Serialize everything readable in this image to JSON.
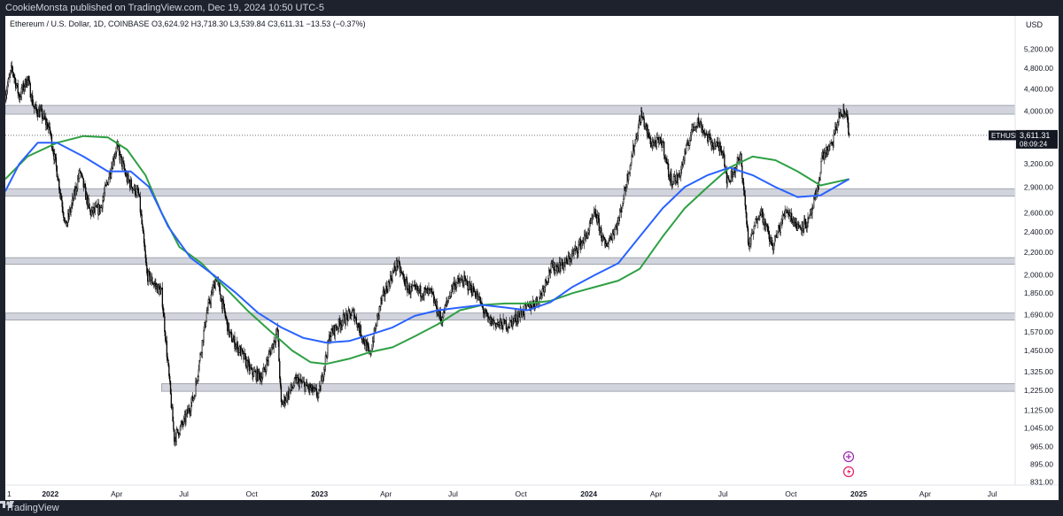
{
  "header": {
    "published_text": "CookieMonsta published on TradingView.com, Dec 19, 2024 10:50 UTC-5"
  },
  "footer": {
    "brand": "TradingView"
  },
  "colors": {
    "ma_blue": "#2962ff",
    "ma_green": "#2ea043",
    "zone": "#d1d4dc"
  },
  "chart_data": {
    "type": "candlestick",
    "symbol_line": "Ethereum / U.S. Dollar, 1D, COINBASE  O3,624.92  H3,718.30  L3,539.84  C3,611.31  −13.53 (−0.37%)",
    "currency": "USD",
    "price_label": {
      "symbol": "ETHUSD",
      "price": "3,611.31",
      "countdown": "08:09:24",
      "value": 3611.31
    },
    "scale": "log",
    "ylim": [
      820,
      5600
    ],
    "y_ticks": [
      {
        "label": "5,200.00",
        "value": 5200
      },
      {
        "label": "4,800.00",
        "value": 4800
      },
      {
        "label": "4,400.00",
        "value": 4400
      },
      {
        "label": "4,000.00",
        "value": 4000
      },
      {
        "label": "3,600.00",
        "value": 3600
      },
      {
        "label": "3,200.00",
        "value": 3200
      },
      {
        "label": "2,900.00",
        "value": 2900
      },
      {
        "label": "2,600.00",
        "value": 2600
      },
      {
        "label": "2,400.00",
        "value": 2400
      },
      {
        "label": "2,200.00",
        "value": 2200
      },
      {
        "label": "2,000.00",
        "value": 2000
      },
      {
        "label": "1,850.00",
        "value": 1850
      },
      {
        "label": "1,690.00",
        "value": 1690
      },
      {
        "label": "1,570.00",
        "value": 1570
      },
      {
        "label": "1,450.00",
        "value": 1450
      },
      {
        "label": "1,325.00",
        "value": 1325
      },
      {
        "label": "1,225.00",
        "value": 1225
      },
      {
        "label": "1,125.00",
        "value": 1125
      },
      {
        "label": "1,045.00",
        "value": 1045
      },
      {
        "label": "965.00",
        "value": 965
      },
      {
        "label": "895.00",
        "value": 895
      },
      {
        "label": "831.00",
        "value": 831
      }
    ],
    "x_ticks": [
      {
        "label": "1",
        "date": "2021-11-01"
      },
      {
        "label": "2022",
        "date": "2022-01-01"
      },
      {
        "label": "Apr",
        "date": "2022-04-01"
      },
      {
        "label": "Jul",
        "date": "2022-07-01"
      },
      {
        "label": "Oct",
        "date": "2022-10-01"
      },
      {
        "label": "2023",
        "date": "2023-01-01"
      },
      {
        "label": "Apr",
        "date": "2023-04-01"
      },
      {
        "label": "Jul",
        "date": "2023-07-01"
      },
      {
        "label": "Oct",
        "date": "2023-10-01"
      },
      {
        "label": "2024",
        "date": "2024-01-01"
      },
      {
        "label": "Apr",
        "date": "2024-04-01"
      },
      {
        "label": "Jul",
        "date": "2024-07-01"
      },
      {
        "label": "Oct",
        "date": "2024-10-01"
      },
      {
        "label": "2025",
        "date": "2025-01-01"
      },
      {
        "label": "Apr",
        "date": "2025-04-01"
      },
      {
        "label": "Jul",
        "date": "2025-07-01"
      }
    ],
    "xlim": [
      "2021-11-01",
      "2025-08-01"
    ],
    "zones": [
      {
        "low": 3950,
        "high": 4100
      },
      {
        "low": 2790,
        "high": 2880
      },
      {
        "low": 2090,
        "high": 2150
      },
      {
        "low": 1650,
        "high": 1700
      },
      {
        "low": 1220,
        "high": 1260,
        "start": "2022-06-01"
      }
    ],
    "price_path": [
      [
        "2021-11-01",
        4300
      ],
      [
        "2021-11-10",
        4800
      ],
      [
        "2021-11-20",
        4250
      ],
      [
        "2021-12-01",
        4600
      ],
      [
        "2021-12-10",
        4050
      ],
      [
        "2021-12-20",
        3950
      ],
      [
        "2021-12-31",
        3700
      ],
      [
        "2022-01-10",
        3100
      ],
      [
        "2022-01-22",
        2450
      ],
      [
        "2022-02-01",
        2750
      ],
      [
        "2022-02-10",
        3100
      ],
      [
        "2022-02-24",
        2600
      ],
      [
        "2022-03-10",
        2650
      ],
      [
        "2022-04-01",
        3450
      ],
      [
        "2022-04-15",
        3000
      ],
      [
        "2022-05-01",
        2800
      ],
      [
        "2022-05-12",
        2000
      ],
      [
        "2022-06-01",
        1850
      ],
      [
        "2022-06-18",
        1000
      ],
      [
        "2022-07-01",
        1070
      ],
      [
        "2022-07-15",
        1200
      ],
      [
        "2022-08-01",
        1700
      ],
      [
        "2022-08-14",
        1980
      ],
      [
        "2022-09-01",
        1550
      ],
      [
        "2022-09-15",
        1450
      ],
      [
        "2022-10-01",
        1320
      ],
      [
        "2022-10-15",
        1300
      ],
      [
        "2022-11-05",
        1580
      ],
      [
        "2022-11-10",
        1150
      ],
      [
        "2022-12-01",
        1280
      ],
      [
        "2022-12-31",
        1200
      ],
      [
        "2023-01-15",
        1550
      ],
      [
        "2023-02-01",
        1650
      ],
      [
        "2023-02-16",
        1700
      ],
      [
        "2023-03-10",
        1420
      ],
      [
        "2023-03-25",
        1780
      ],
      [
        "2023-04-16",
        2100
      ],
      [
        "2023-05-01",
        1880
      ],
      [
        "2023-06-01",
        1850
      ],
      [
        "2023-06-15",
        1650
      ],
      [
        "2023-07-01",
        1920
      ],
      [
        "2023-07-15",
        1950
      ],
      [
        "2023-08-01",
        1850
      ],
      [
        "2023-08-17",
        1650
      ],
      [
        "2023-09-01",
        1620
      ],
      [
        "2023-09-15",
        1620
      ],
      [
        "2023-10-01",
        1700
      ],
      [
        "2023-10-25",
        1800
      ],
      [
        "2023-11-10",
        2050
      ],
      [
        "2023-12-01",
        2100
      ],
      [
        "2023-12-28",
        2350
      ],
      [
        "2024-01-10",
        2600
      ],
      [
        "2024-01-23",
        2250
      ],
      [
        "2024-02-10",
        2500
      ],
      [
        "2024-02-26",
        3200
      ],
      [
        "2024-03-12",
        3950
      ],
      [
        "2024-03-25",
        3500
      ],
      [
        "2024-04-10",
        3500
      ],
      [
        "2024-04-20",
        3000
      ],
      [
        "2024-05-01",
        3000
      ],
      [
        "2024-05-20",
        3700
      ],
      [
        "2024-05-27",
        3850
      ],
      [
        "2024-06-15",
        3500
      ],
      [
        "2024-07-01",
        3400
      ],
      [
        "2024-07-07",
        2950
      ],
      [
        "2024-07-25",
        3300
      ],
      [
        "2024-08-05",
        2250
      ],
      [
        "2024-08-20",
        2650
      ],
      [
        "2024-09-06",
        2250
      ],
      [
        "2024-09-25",
        2650
      ],
      [
        "2024-10-10",
        2450
      ],
      [
        "2024-10-25",
        2500
      ],
      [
        "2024-11-06",
        2850
      ],
      [
        "2024-11-12",
        3300
      ],
      [
        "2024-11-25",
        3450
      ],
      [
        "2024-12-06",
        3950
      ],
      [
        "2024-12-16",
        3950
      ],
      [
        "2024-12-19",
        3611
      ]
    ],
    "ma_blue": [
      [
        "2021-11-01",
        2850
      ],
      [
        "2021-11-20",
        3200
      ],
      [
        "2021-12-15",
        3500
      ],
      [
        "2022-01-10",
        3500
      ],
      [
        "2022-02-15",
        3300
      ],
      [
        "2022-03-20",
        3100
      ],
      [
        "2022-04-20",
        3100
      ],
      [
        "2022-05-15",
        2900
      ],
      [
        "2022-06-10",
        2450
      ],
      [
        "2022-07-10",
        2150
      ],
      [
        "2022-08-10",
        2000
      ],
      [
        "2022-09-10",
        1850
      ],
      [
        "2022-10-10",
        1700
      ],
      [
        "2022-11-10",
        1600
      ],
      [
        "2022-12-10",
        1530
      ],
      [
        "2023-01-10",
        1500
      ],
      [
        "2023-02-10",
        1510
      ],
      [
        "2023-03-10",
        1550
      ],
      [
        "2023-04-10",
        1600
      ],
      [
        "2023-05-10",
        1680
      ],
      [
        "2023-06-10",
        1720
      ],
      [
        "2023-07-10",
        1740
      ],
      [
        "2023-08-10",
        1760
      ],
      [
        "2023-09-10",
        1740
      ],
      [
        "2023-10-10",
        1720
      ],
      [
        "2023-11-10",
        1780
      ],
      [
        "2023-12-10",
        1900
      ],
      [
        "2024-01-10",
        2000
      ],
      [
        "2024-02-10",
        2100
      ],
      [
        "2024-03-10",
        2350
      ],
      [
        "2024-04-10",
        2650
      ],
      [
        "2024-05-10",
        2900
      ],
      [
        "2024-06-10",
        3050
      ],
      [
        "2024-07-10",
        3150
      ],
      [
        "2024-08-10",
        3050
      ],
      [
        "2024-09-10",
        2900
      ],
      [
        "2024-10-10",
        2780
      ],
      [
        "2024-11-10",
        2800
      ],
      [
        "2024-12-19",
        3000
      ]
    ],
    "ma_green": [
      [
        "2021-11-01",
        3000
      ],
      [
        "2021-12-01",
        3300
      ],
      [
        "2022-01-10",
        3500
      ],
      [
        "2022-02-15",
        3600
      ],
      [
        "2022-03-20",
        3580
      ],
      [
        "2022-04-15",
        3400
      ],
      [
        "2022-05-10",
        3050
      ],
      [
        "2022-06-01",
        2600
      ],
      [
        "2022-06-25",
        2250
      ],
      [
        "2022-07-25",
        2100
      ],
      [
        "2022-08-25",
        1900
      ],
      [
        "2022-09-25",
        1720
      ],
      [
        "2022-10-25",
        1580
      ],
      [
        "2022-11-25",
        1450
      ],
      [
        "2022-12-20",
        1380
      ],
      [
        "2023-01-10",
        1370
      ],
      [
        "2023-02-10",
        1400
      ],
      [
        "2023-03-10",
        1440
      ],
      [
        "2023-04-10",
        1470
      ],
      [
        "2023-05-10",
        1540
      ],
      [
        "2023-06-10",
        1620
      ],
      [
        "2023-07-10",
        1720
      ],
      [
        "2023-08-10",
        1760
      ],
      [
        "2023-09-10",
        1770
      ],
      [
        "2023-10-10",
        1770
      ],
      [
        "2023-11-10",
        1790
      ],
      [
        "2023-12-10",
        1850
      ],
      [
        "2024-01-10",
        1900
      ],
      [
        "2024-02-10",
        1950
      ],
      [
        "2024-03-10",
        2050
      ],
      [
        "2024-04-10",
        2350
      ],
      [
        "2024-05-10",
        2650
      ],
      [
        "2024-06-10",
        2900
      ],
      [
        "2024-07-10",
        3150
      ],
      [
        "2024-08-10",
        3300
      ],
      [
        "2024-09-10",
        3250
      ],
      [
        "2024-10-10",
        3100
      ],
      [
        "2024-11-10",
        2920
      ],
      [
        "2024-12-19",
        3000
      ]
    ]
  }
}
